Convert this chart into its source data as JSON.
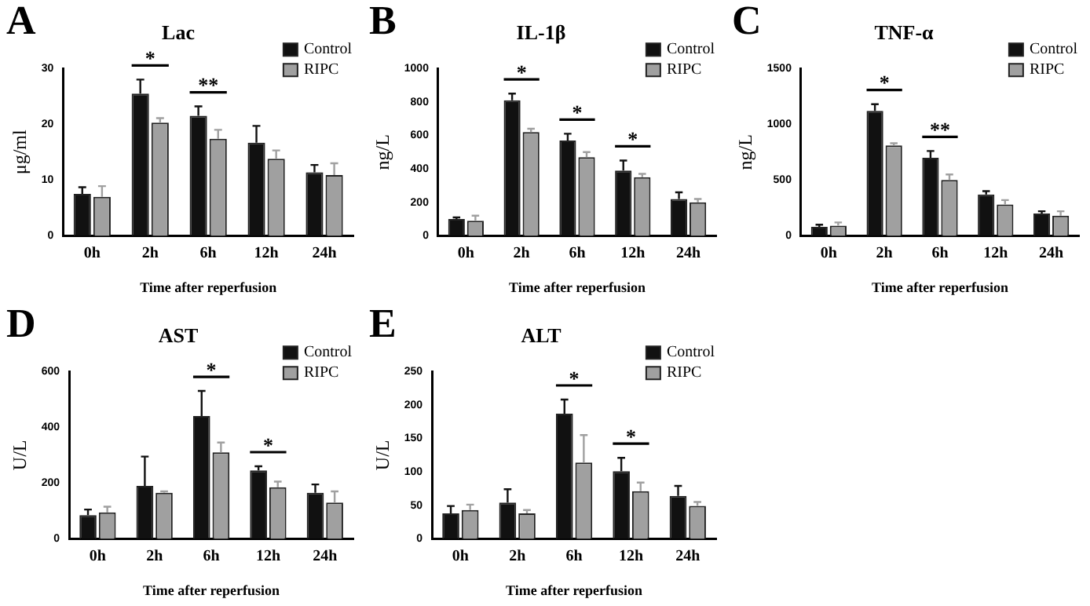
{
  "chart_data": [
    {
      "type": "bar",
      "title": "Lac",
      "xlabel": "Time after reperfusion",
      "ylabel": "μg/ml",
      "categories": [
        "0h",
        "2h",
        "6h",
        "12h",
        "24h"
      ],
      "series": [
        {
          "name": "Control",
          "color": "#111111",
          "values": [
            7.5,
            25.5,
            21.5,
            16.7,
            11.4
          ],
          "errors": [
            [
              7.5,
              8.7
            ],
            [
              25.5,
              28
            ],
            [
              21.5,
              23.2
            ],
            [
              16.7,
              19.7
            ],
            [
              11.4,
              12.7
            ]
          ]
        },
        {
          "name": "RIPC",
          "color": "#a0a0a0",
          "values": [
            7.0,
            20.3,
            17.4,
            13.8,
            10.9
          ],
          "errors": [
            [
              7.0,
              8.9
            ],
            [
              20.3,
              21.1
            ],
            [
              17.4,
              19.0
            ],
            [
              13.8,
              15.3
            ],
            [
              10.9,
              13.0
            ]
          ]
        }
      ],
      "ylim": [
        0,
        30
      ],
      "yticks": [
        0,
        10,
        20,
        30
      ],
      "legend": "top right",
      "annotations": [
        "A",
        {
          "text": "*",
          "x": "2h",
          "y": 25.5
        },
        {
          "text": "**",
          "x": "6h",
          "y": 21.5
        }
      ]
    },
    {
      "type": "bar",
      "title": "IL-1β",
      "xlabel": "Time after reperfusion",
      "ylabel": "ng/L",
      "categories": [
        "0h",
        "2h",
        "6h",
        "12h",
        "24h"
      ],
      "series": [
        {
          "name": "Control",
          "color": "#111111",
          "values": [
            100,
            810,
            570,
            390,
            220
          ],
          "errors": [
            [
              100,
              110
            ],
            [
              810,
              850
            ],
            [
              570,
              610
            ],
            [
              390,
              450
            ],
            [
              220,
              260
            ]
          ]
        },
        {
          "name": "RIPC",
          "color": "#a0a0a0",
          "values": [
            90,
            620,
            470,
            350,
            200
          ],
          "errors": [
            [
              90,
              120
            ],
            [
              620,
              640
            ],
            [
              470,
              500
            ],
            [
              350,
              370
            ],
            [
              200,
              220
            ]
          ]
        }
      ],
      "ylim": [
        0,
        1000
      ],
      "yticks": [
        0,
        200,
        400,
        600,
        800,
        1000
      ],
      "legend": "top right",
      "annotations": [
        "B",
        {
          "text": "*",
          "x": "2h",
          "y": 810
        },
        {
          "text": "*",
          "x": "6h",
          "y": 570
        },
        {
          "text": "*",
          "x": "12h",
          "y": 390
        }
      ]
    },
    {
      "type": "bar",
      "title": "TNF-α",
      "xlabel": "Time after reperfusion",
      "ylabel": "ng/L",
      "categories": [
        "0h",
        "2h",
        "6h",
        "12h",
        "24h"
      ],
      "series": [
        {
          "name": "Control",
          "color": "#111111",
          "values": [
            80,
            1120,
            700,
            370,
            200
          ],
          "errors": [
            [
              80,
              100
            ],
            [
              1120,
              1180
            ],
            [
              700,
              760
            ],
            [
              370,
              400
            ],
            [
              200,
              220
            ]
          ]
        },
        {
          "name": "RIPC",
          "color": "#a0a0a0",
          "values": [
            90,
            810,
            500,
            280,
            180
          ],
          "errors": [
            [
              90,
              120
            ],
            [
              810,
              830
            ],
            [
              500,
              550
            ],
            [
              280,
              320
            ],
            [
              180,
              220
            ]
          ]
        }
      ],
      "ylim": [
        0,
        1500
      ],
      "yticks": [
        0,
        500,
        1000,
        1500
      ],
      "legend": "top right",
      "annotations": [
        "C",
        {
          "text": "*",
          "x": "2h",
          "y": 1120
        },
        {
          "text": "**",
          "x": "6h",
          "y": 700
        }
      ]
    },
    {
      "type": "bar",
      "title": "AST",
      "xlabel": "Time after reperfusion",
      "ylabel": "U/L",
      "categories": [
        "0h",
        "2h",
        "6h",
        "12h",
        "24h"
      ],
      "series": [
        {
          "name": "Control",
          "color": "#111111",
          "values": [
            85,
            190,
            440,
            245,
            165
          ],
          "errors": [
            [
              85,
              105
            ],
            [
              190,
              295
            ],
            [
              440,
              530
            ],
            [
              245,
              260
            ],
            [
              165,
              195
            ]
          ]
        },
        {
          "name": "RIPC",
          "color": "#a0a0a0",
          "values": [
            95,
            165,
            310,
            185,
            130
          ],
          "errors": [
            [
              95,
              115
            ],
            [
              165,
              170
            ],
            [
              310,
              345
            ],
            [
              185,
              205
            ],
            [
              130,
              170
            ]
          ]
        }
      ],
      "ylim": [
        0,
        600
      ],
      "yticks": [
        0,
        200,
        400,
        600
      ],
      "legend": "top right",
      "annotations": [
        "D",
        {
          "text": "*",
          "x": "6h",
          "y": 440
        },
        {
          "text": "*",
          "x": "12h",
          "y": 245
        }
      ]
    },
    {
      "type": "bar",
      "title": "ALT",
      "xlabel": "Time after reperfusion",
      "ylabel": "U/L",
      "categories": [
        "0h",
        "2h",
        "6h",
        "12h",
        "24h"
      ],
      "series": [
        {
          "name": "Control",
          "color": "#111111",
          "values": [
            38,
            54,
            187,
            101,
            64
          ],
          "errors": [
            [
              38,
              49
            ],
            [
              54,
              74
            ],
            [
              187,
              208
            ],
            [
              101,
              121
            ],
            [
              64,
              79
            ]
          ]
        },
        {
          "name": "RIPC",
          "color": "#a0a0a0",
          "values": [
            43,
            38,
            114,
            71,
            49
          ],
          "errors": [
            [
              43,
              51
            ],
            [
              38,
              43
            ],
            [
              114,
              155
            ],
            [
              71,
              84
            ],
            [
              49,
              55
            ]
          ]
        }
      ],
      "ylim": [
        0,
        250
      ],
      "yticks": [
        0,
        50,
        100,
        150,
        200,
        250
      ],
      "legend": "top right",
      "annotations": [
        "E",
        {
          "text": "*",
          "x": "6h",
          "y": 187
        },
        {
          "text": "*",
          "x": "12h",
          "y": 101
        }
      ]
    }
  ]
}
